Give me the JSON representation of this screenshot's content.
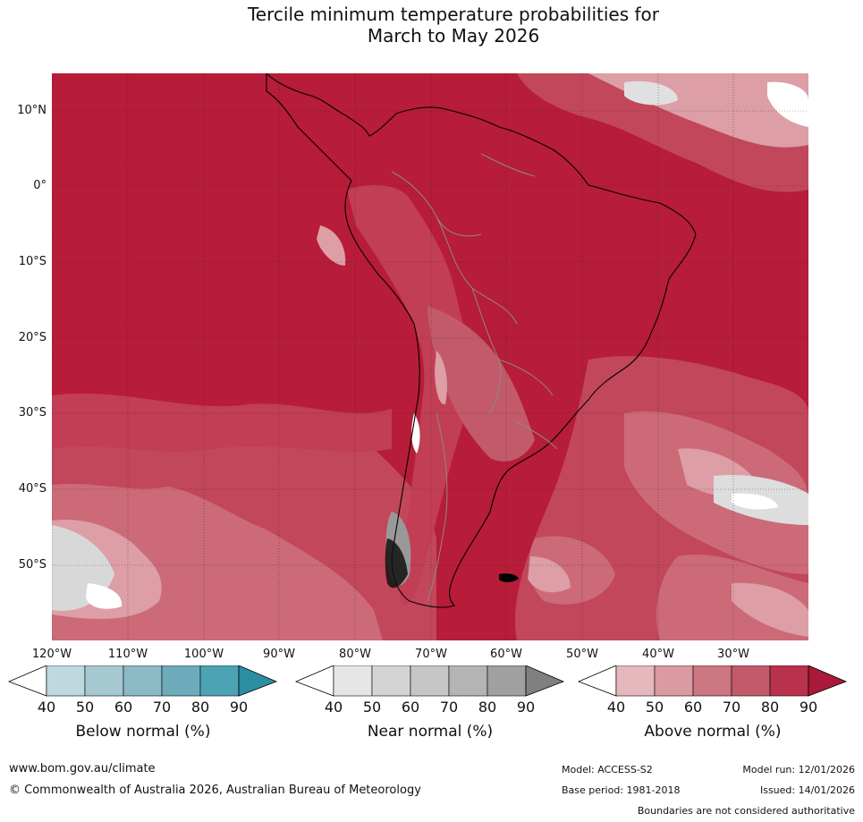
{
  "title": {
    "line1": "Tercile minimum temperature probabilities for",
    "line2": "March to May 2026"
  },
  "map": {
    "lat_labels": [
      "10°N",
      "0°",
      "10°S",
      "20°S",
      "30°S",
      "40°S",
      "50°S"
    ],
    "lon_labels": [
      "120°W",
      "110°W",
      "100°W",
      "90°W",
      "80°W",
      "70°W",
      "60°W",
      "50°W",
      "40°W",
      "30°W"
    ],
    "dominant_category": "Above normal",
    "dominant_probability_range": "80-90%"
  },
  "colorbars": [
    {
      "label": "Below normal (%)",
      "ticks": [
        "40",
        "50",
        "60",
        "70",
        "80",
        "90"
      ],
      "colors": [
        "#ffffff",
        "#bed8df",
        "#a6c8d1",
        "#8bbac6",
        "#6dabbb",
        "#4ca3b3",
        "#2c8ea3"
      ]
    },
    {
      "label": "Near normal (%)",
      "ticks": [
        "40",
        "50",
        "60",
        "70",
        "80",
        "90"
      ],
      "colors": [
        "#ffffff",
        "#e6e6e6",
        "#d4d4d4",
        "#c6c6c6",
        "#b4b4b4",
        "#a0a0a0",
        "#808080"
      ]
    },
    {
      "label": "Above normal (%)",
      "ticks": [
        "40",
        "50",
        "60",
        "70",
        "80",
        "90"
      ],
      "colors": [
        "#ffffff",
        "#e4b8bd",
        "#d99aa2",
        "#cc7681",
        "#c25a69",
        "#b8324b",
        "#aa1a38"
      ]
    }
  ],
  "footer": {
    "website": "www.bom.gov.au/climate",
    "copyright": "© Commonwealth of Australia 2026, Australian Bureau of Meteorology",
    "model": "Model: ACCESS-S2",
    "base_period": "Base period: 1981-2018",
    "model_run": "Model run: 12/01/2026",
    "issued": "Issued: 14/01/2026",
    "disclaimer": "Boundaries are not considered authoritative"
  }
}
